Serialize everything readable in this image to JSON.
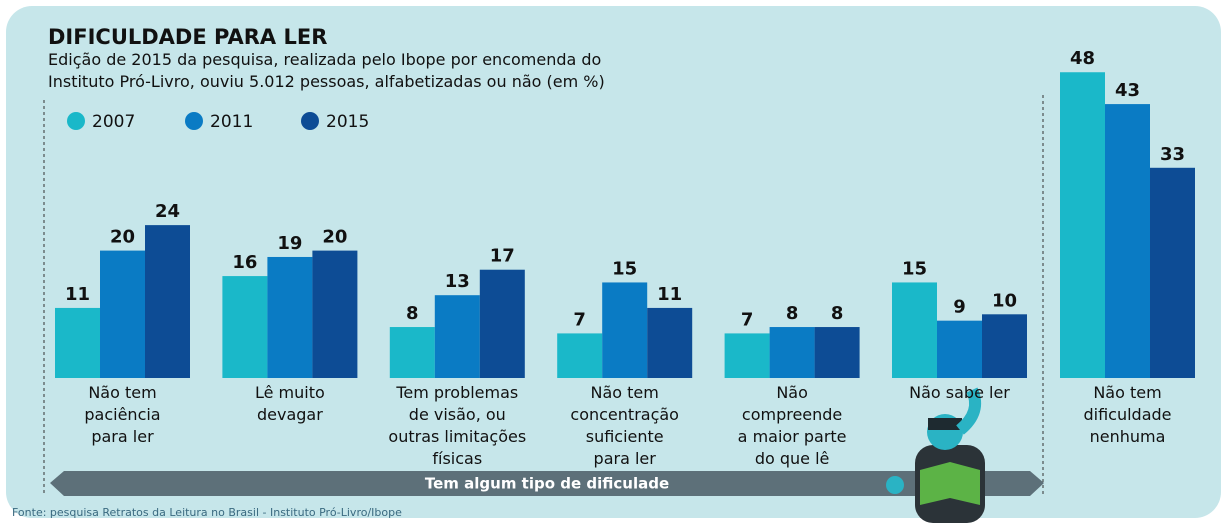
{
  "chart_data": {
    "type": "bar",
    "title": "DIFICULDADE PARA LER",
    "subtitle": "Edição de 2015 da pesquisa, realizada pelo Ibope por encomenda do\nInstituto Pró-Livro, ouviu 5.012 pessoas, alfabetizadas ou não (em %)",
    "categories": [
      "Não tem\npaciência\npara ler",
      "Lê muito\ndevagar",
      "Tem problemas\nde visão, ou\noutras limitações\nfísicas",
      "Não tem\nconcentração\nsuficiente\npara ler",
      "Não\ncompreende\na maior parte\ndo que lê",
      "Não sabe ler",
      "Não tem\ndificuldade\nnenhuma"
    ],
    "series": [
      {
        "name": "2007",
        "color": "#1ab8c9",
        "values": [
          11,
          16,
          8,
          7,
          7,
          15,
          48
        ]
      },
      {
        "name": "2011",
        "color": "#0a7bc4",
        "values": [
          20,
          19,
          13,
          15,
          8,
          9,
          43
        ]
      },
      {
        "name": "2015",
        "color": "#0d4c95",
        "values": [
          24,
          20,
          17,
          11,
          8,
          10,
          33
        ]
      }
    ],
    "annotation": "Tem algum tipo de dificulade",
    "source": "Fonte: pesquisa Retratos da Leitura no Brasil - Instituto Pró-Livro/Ibope"
  }
}
